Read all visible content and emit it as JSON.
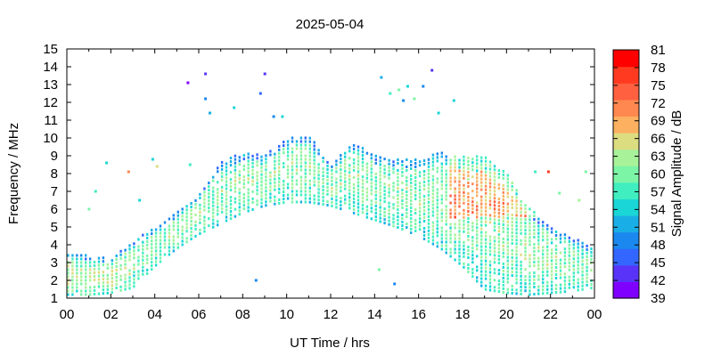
{
  "chart_data": {
    "type": "heatmap",
    "title": "2025-05-04",
    "xlabel": "UT Time / hrs",
    "ylabel": "Frequency / MHz",
    "colorbar_label": "Signal Amplitude / dB",
    "xlim": [
      0,
      24
    ],
    "ylim": [
      1,
      15
    ],
    "x_ticks": [
      "00",
      "02",
      "04",
      "06",
      "08",
      "10",
      "12",
      "14",
      "16",
      "18",
      "20",
      "22",
      "00"
    ],
    "y_ticks": [
      "1",
      "2",
      "3",
      "4",
      "5",
      "6",
      "7",
      "8",
      "9",
      "10",
      "11",
      "12",
      "13",
      "14",
      "15"
    ],
    "colorbar_ticks": [
      "39",
      "42",
      "45",
      "48",
      "51",
      "54",
      "57",
      "60",
      "63",
      "66",
      "69",
      "72",
      "75",
      "78",
      "81"
    ],
    "colorbar_range": [
      39,
      81
    ],
    "colorbar_colors": [
      "#8000ff",
      "#5a33f8",
      "#3366ff",
      "#1a88ee",
      "#1aaee6",
      "#1ad6d6",
      "#40eec0",
      "#7cf5a6",
      "#a8f29a",
      "#dcdc80",
      "#fcb060",
      "#ff8850",
      "#ff6040",
      "#ff3a20",
      "#ff0000"
    ],
    "envelope": [
      [
        0,
        1.2,
        3.6
      ],
      [
        1,
        1.2,
        3.4
      ],
      [
        2,
        1.3,
        3.2
      ],
      [
        3,
        1.6,
        4.2
      ],
      [
        4,
        2.8,
        5.0
      ],
      [
        5,
        3.8,
        5.8
      ],
      [
        6,
        4.6,
        6.8
      ],
      [
        7,
        5.2,
        8.6
      ],
      [
        8,
        5.8,
        9.2
      ],
      [
        9,
        6.2,
        9.0
      ],
      [
        10,
        6.4,
        10.0
      ],
      [
        11,
        6.4,
        10.2
      ],
      [
        12,
        6.2,
        8.4
      ],
      [
        13,
        5.8,
        9.8
      ],
      [
        14,
        5.4,
        9.0
      ],
      [
        15,
        5.0,
        8.8
      ],
      [
        16,
        4.5,
        8.8
      ],
      [
        17,
        3.8,
        9.2
      ],
      [
        18,
        2.8,
        9.0
      ],
      [
        19,
        1.5,
        9.0
      ],
      [
        20,
        1.3,
        8.0
      ],
      [
        21,
        1.2,
        6.2
      ],
      [
        22,
        1.3,
        5.0
      ],
      [
        23,
        1.4,
        4.4
      ],
      [
        24,
        1.6,
        3.8
      ]
    ],
    "outliers": [
      {
        "t": 5.5,
        "f": 13.1,
        "v": 41
      },
      {
        "t": 6.3,
        "f": 13.6,
        "v": 44
      },
      {
        "t": 6.3,
        "f": 12.2,
        "v": 48
      },
      {
        "t": 6.5,
        "f": 11.4,
        "v": 52
      },
      {
        "t": 7.6,
        "f": 11.7,
        "v": 55
      },
      {
        "t": 8.8,
        "f": 12.5,
        "v": 47
      },
      {
        "t": 9.0,
        "f": 13.6,
        "v": 42
      },
      {
        "t": 9.4,
        "f": 11.2,
        "v": 50
      },
      {
        "t": 9.8,
        "f": 11.2,
        "v": 53
      },
      {
        "t": 14.3,
        "f": 13.4,
        "v": 52
      },
      {
        "t": 14.7,
        "f": 12.5,
        "v": 58
      },
      {
        "t": 15.1,
        "f": 12.7,
        "v": 60
      },
      {
        "t": 15.3,
        "f": 12.1,
        "v": 48
      },
      {
        "t": 15.5,
        "f": 12.9,
        "v": 54
      },
      {
        "t": 15.8,
        "f": 12.2,
        "v": 60
      },
      {
        "t": 16.2,
        "f": 12.9,
        "v": 50
      },
      {
        "t": 16.6,
        "f": 13.8,
        "v": 44
      },
      {
        "t": 16.9,
        "f": 11.4,
        "v": 55
      },
      {
        "t": 17.6,
        "f": 12.1,
        "v": 53
      },
      {
        "t": 1.0,
        "f": 6.0,
        "v": 60
      },
      {
        "t": 1.3,
        "f": 7.0,
        "v": 56
      },
      {
        "t": 1.8,
        "f": 8.6,
        "v": 53
      },
      {
        "t": 2.8,
        "f": 8.1,
        "v": 70
      },
      {
        "t": 3.3,
        "f": 6.5,
        "v": 53
      },
      {
        "t": 3.9,
        "f": 8.8,
        "v": 54
      },
      {
        "t": 4.1,
        "f": 8.4,
        "v": 66
      },
      {
        "t": 5.6,
        "f": 8.5,
        "v": 58
      },
      {
        "t": 8.6,
        "f": 2.0,
        "v": 50
      },
      {
        "t": 14.2,
        "f": 2.6,
        "v": 60
      },
      {
        "t": 14.9,
        "f": 1.8,
        "v": 48
      },
      {
        "t": 21.9,
        "f": 8.1,
        "v": 78
      },
      {
        "t": 21.3,
        "f": 8.1,
        "v": 57
      },
      {
        "t": 22.4,
        "f": 6.9,
        "v": 60
      },
      {
        "t": 23.3,
        "f": 6.5,
        "v": 62
      },
      {
        "t": 23.6,
        "f": 8.1,
        "v": 60
      }
    ]
  }
}
